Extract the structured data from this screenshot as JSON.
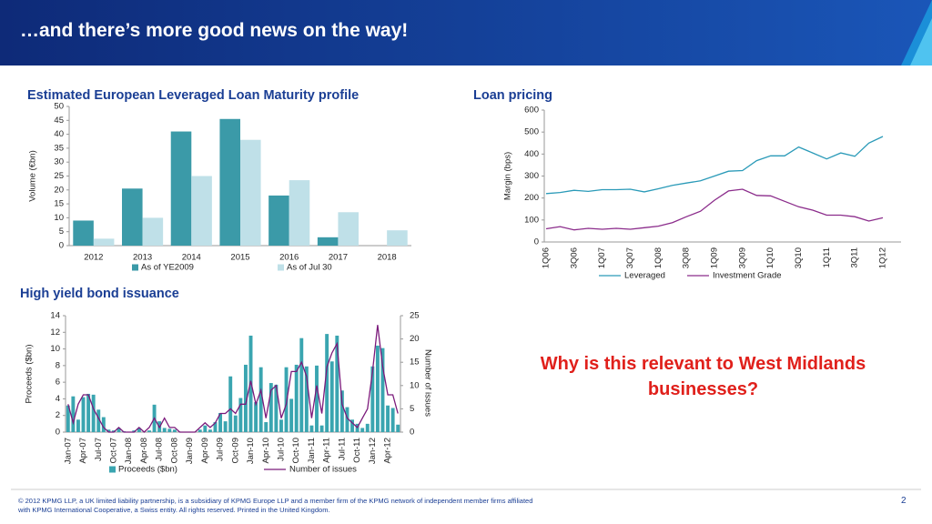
{
  "slide": {
    "title": "…and there’s more good news on the way!",
    "question": "Why is this relevant to West Midlands businesses?",
    "footer": [
      "© 2012 KPMG LLP, a UK limited liability partnership, is a subsidiary of KPMG Europe LLP and a member firm of the KPMG network of independent member firms affiliated",
      "with KPMG International Cooperative, a Swiss entity. All rights reserved. Printed in the United Kingdom."
    ],
    "page": "2"
  },
  "chart_data": [
    {
      "type": "bar",
      "title": "Estimated European Leveraged Loan Maturity profile",
      "y_label": "Volume (€bn)",
      "categories": [
        "2012",
        "2013",
        "2014",
        "2015",
        "2016",
        "2017",
        "2018"
      ],
      "series": [
        {
          "name": "As of YE2009",
          "color": "#3b9aa8",
          "values": [
            9,
            20.5,
            41,
            45.5,
            18,
            3,
            null
          ]
        },
        {
          "name": "As of Jul 30",
          "color": "#bfe0e8",
          "values": [
            2.5,
            10,
            25,
            38,
            23.5,
            12,
            5.5
          ]
        }
      ],
      "ylim": [
        0,
        50
      ],
      "yticks": [
        0,
        5,
        10,
        15,
        20,
        25,
        30,
        35,
        40,
        45,
        50
      ]
    },
    {
      "type": "line",
      "title": "Loan pricing",
      "y_label": "Margin (bps)",
      "categories": [
        "1Q06",
        null,
        "3Q06",
        null,
        "1Q07",
        null,
        "3Q07",
        null,
        "1Q08",
        null,
        "3Q08",
        null,
        "1Q09",
        null,
        "3Q09",
        null,
        "1Q10",
        null,
        "3Q10",
        null,
        "1Q11",
        null,
        "3Q11",
        null,
        "1Q12"
      ],
      "series": [
        {
          "name": "Leveraged",
          "color": "#2a9ab8",
          "values": [
            220,
            225,
            235,
            230,
            238,
            238,
            240,
            228,
            242,
            258,
            268,
            278,
            300,
            322,
            325,
            370,
            392,
            392,
            432,
            405,
            378,
            405,
            390,
            450,
            480
          ]
        },
        {
          "name": "Investment Grade",
          "color": "#8b2c8b",
          "values": [
            60,
            70,
            55,
            62,
            58,
            62,
            58,
            65,
            72,
            88,
            115,
            140,
            190,
            232,
            240,
            212,
            210,
            185,
            160,
            145,
            122,
            122,
            115,
            95,
            110
          ]
        }
      ],
      "ylim": [
        0,
        600
      ],
      "yticks": [
        0,
        100,
        200,
        300,
        400,
        500,
        600
      ]
    },
    {
      "type": "bar",
      "title": "High yield bond issuance",
      "y_label": "Proceeds ($bn)",
      "y2_label": "Number of issues",
      "categories": [
        "Jan-07",
        null,
        null,
        "Apr-07",
        null,
        null,
        "Jul-07",
        null,
        null,
        "Oct-07",
        null,
        null,
        "Jan-08",
        null,
        null,
        "Apr-08",
        null,
        null,
        "Jul-08",
        null,
        null,
        "Oct-08",
        null,
        null,
        "Jan-09",
        null,
        null,
        "Apr-09",
        null,
        null,
        "Jul-09",
        null,
        null,
        "Oct-09",
        null,
        null,
        "Jan-10",
        null,
        null,
        "Apr-10",
        null,
        null,
        "Jul-10",
        null,
        null,
        "Oct-10",
        null,
        null,
        "Jan-11",
        null,
        null,
        "Apr-11",
        null,
        null,
        "Jul-11",
        null,
        null,
        "Oct-11",
        null,
        null,
        "Jan-12",
        null,
        null,
        "Apr-12",
        null,
        null
      ],
      "series": [
        {
          "name": "Proceeds ($bn)",
          "color": "#3aa5b0",
          "values": [
            3.2,
            4.3,
            1.5,
            4.2,
            4.6,
            4.5,
            2.7,
            1.8,
            0.3,
            0.2,
            0.5,
            0.1,
            0,
            0.2,
            0.5,
            0,
            0.2,
            3.3,
            1.3,
            0.5,
            0.4,
            0.3,
            0,
            0,
            0,
            0,
            0.3,
            0.8,
            0.3,
            1.2,
            2.3,
            1.3,
            6.7,
            2,
            4.1,
            8.1,
            11.6,
            3.6,
            7.8,
            1.2,
            5.9,
            5.7,
            1.5,
            7.8,
            4,
            8.1,
            11.3,
            7.9,
            0.8,
            8,
            0.8,
            11.8,
            8.5,
            11.6,
            5,
            3,
            1.5,
            1,
            0.5,
            1,
            7.9,
            10.4,
            10.1,
            3.2,
            2.9,
            0.9
          ]
        },
        {
          "name": "Number of issues",
          "color": "#7b1a7b",
          "type": "line",
          "axis": "y2",
          "values": [
            6,
            2,
            6,
            8,
            8,
            5,
            3,
            1,
            0,
            0,
            1,
            0,
            0,
            0,
            1,
            0,
            1,
            3,
            1,
            3,
            1,
            1,
            0,
            0,
            0,
            0,
            1,
            2,
            1,
            2,
            4,
            4,
            5,
            4,
            6,
            6,
            11,
            6,
            9,
            3,
            9,
            10,
            3,
            6,
            13,
            13,
            15,
            12,
            3,
            10,
            4,
            14,
            17,
            19,
            6,
            3,
            2,
            1,
            3,
            5,
            13,
            23,
            14,
            8,
            8,
            4
          ]
        }
      ],
      "ylim": [
        0,
        14
      ],
      "yticks": [
        0,
        2,
        4,
        6,
        8,
        10,
        12,
        14
      ],
      "y2lim": [
        0,
        25
      ],
      "y2ticks": [
        0,
        5,
        10,
        15,
        20,
        25
      ]
    }
  ]
}
